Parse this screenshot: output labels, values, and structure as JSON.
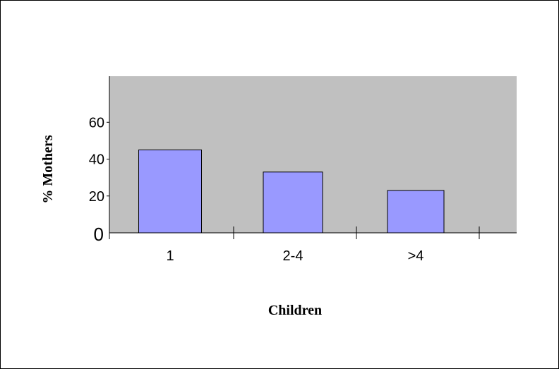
{
  "chart_data": {
    "type": "bar",
    "categories": [
      "1",
      "2-4",
      ">4"
    ],
    "values": [
      45,
      33,
      23
    ],
    "xlabel": "Children",
    "ylabel": "% Mothers",
    "ylim": [
      0,
      85
    ],
    "yticks": [
      0,
      20,
      40,
      60
    ],
    "grid": false,
    "plot_background": "#C0C0C0",
    "bar_color": "#9999FF"
  }
}
